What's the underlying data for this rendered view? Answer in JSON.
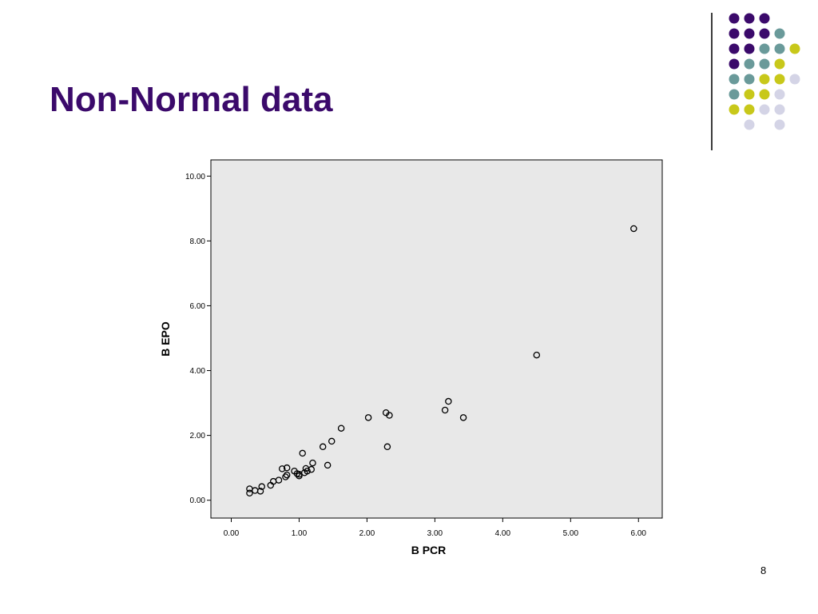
{
  "slide": {
    "title": "Non-Normal data",
    "page_number": "8"
  },
  "colors": {
    "title": "#3b0a6b",
    "dot_purple": "#3b0a6b",
    "dot_teal": "#6a9a9a",
    "dot_yellow": "#c8c81a",
    "dot_lavender": "#d4d4e6",
    "plot_background": "#e8e8e8"
  },
  "decoration": {
    "rows": [
      [
        "purple",
        "purple",
        "purple",
        null,
        null
      ],
      [
        "purple",
        "purple",
        "purple",
        "teal",
        null
      ],
      [
        "purple",
        "purple",
        "teal",
        "teal",
        "yellow"
      ],
      [
        "purple",
        "teal",
        "teal",
        "yellow",
        null
      ],
      [
        "teal",
        "teal",
        "yellow",
        "yellow",
        "lavender"
      ],
      [
        "teal",
        "yellow",
        "yellow",
        "lavender",
        null
      ],
      [
        "yellow",
        "yellow",
        "lavender",
        "lavender",
        null
      ],
      [
        null,
        "lavender",
        null,
        "lavender",
        null
      ]
    ]
  },
  "chart_data": {
    "type": "scatter",
    "title": "",
    "xlabel": "B PCR",
    "ylabel": "B EPO",
    "xlim": [
      -0.3,
      6.35
    ],
    "ylim": [
      -0.55,
      10.5
    ],
    "xticks": [
      0.0,
      1.0,
      2.0,
      3.0,
      4.0,
      5.0,
      6.0
    ],
    "yticks": [
      0.0,
      2.0,
      4.0,
      6.0,
      8.0,
      10.0
    ],
    "grid": false,
    "marker": "hollow-circle",
    "points": [
      [
        0.27,
        0.35
      ],
      [
        0.27,
        0.22
      ],
      [
        0.35,
        0.3
      ],
      [
        0.43,
        0.28
      ],
      [
        0.45,
        0.42
      ],
      [
        0.58,
        0.46
      ],
      [
        0.62,
        0.58
      ],
      [
        0.7,
        0.62
      ],
      [
        0.75,
        0.97
      ],
      [
        0.8,
        0.72
      ],
      [
        0.82,
        1.0
      ],
      [
        0.82,
        0.78
      ],
      [
        0.93,
        0.9
      ],
      [
        0.97,
        0.82
      ],
      [
        1.0,
        0.75
      ],
      [
        1.0,
        0.8
      ],
      [
        1.05,
        1.45
      ],
      [
        1.08,
        0.85
      ],
      [
        1.1,
        0.98
      ],
      [
        1.12,
        0.9
      ],
      [
        1.18,
        0.95
      ],
      [
        1.2,
        1.15
      ],
      [
        1.35,
        1.65
      ],
      [
        1.42,
        1.08
      ],
      [
        1.48,
        1.82
      ],
      [
        1.62,
        2.22
      ],
      [
        2.02,
        2.55
      ],
      [
        2.28,
        2.7
      ],
      [
        2.3,
        1.65
      ],
      [
        2.33,
        2.62
      ],
      [
        3.15,
        2.78
      ],
      [
        3.2,
        3.05
      ],
      [
        3.42,
        2.55
      ],
      [
        4.5,
        4.48
      ],
      [
        5.93,
        8.38
      ]
    ]
  }
}
